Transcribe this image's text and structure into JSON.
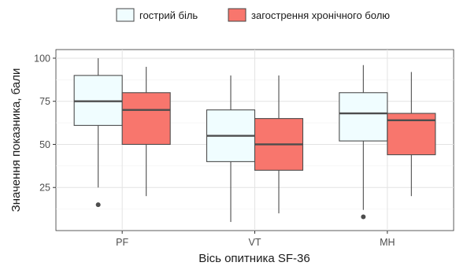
{
  "chart_data": {
    "type": "boxplot",
    "xlabel": "Вісь опитника SF-36",
    "ylabel": "Значення показника, бали",
    "categories": [
      "PF",
      "VT",
      "MH"
    ],
    "ylim": [
      0,
      105
    ],
    "yticks": [
      25,
      50,
      75,
      100
    ],
    "yticklabels": [
      "25",
      "50",
      "75",
      "100"
    ],
    "grid": true,
    "legend_position": "top",
    "series": [
      {
        "name": "гострий біль",
        "color": "#F0FDFF",
        "boxes": [
          {
            "category": "PF",
            "min": 25,
            "q1": 61,
            "median": 75,
            "q3": 90,
            "max": 100,
            "outliers": [
              15
            ]
          },
          {
            "category": "VT",
            "min": 5,
            "q1": 40,
            "median": 55,
            "q3": 70,
            "max": 90,
            "outliers": []
          },
          {
            "category": "MH",
            "min": 12,
            "q1": 52,
            "median": 68,
            "q3": 80,
            "max": 96,
            "outliers": [
              8
            ]
          }
        ]
      },
      {
        "name": "загострення хронічного болю",
        "color": "#F8766D",
        "boxes": [
          {
            "category": "PF",
            "min": 20,
            "q1": 50,
            "median": 70,
            "q3": 80,
            "max": 95,
            "outliers": []
          },
          {
            "category": "VT",
            "min": 10,
            "q1": 35,
            "median": 50,
            "q3": 65,
            "max": 90,
            "outliers": []
          },
          {
            "category": "MH",
            "min": 20,
            "q1": 44,
            "median": 64,
            "q3": 68,
            "max": 92,
            "outliers": []
          }
        ]
      }
    ]
  }
}
